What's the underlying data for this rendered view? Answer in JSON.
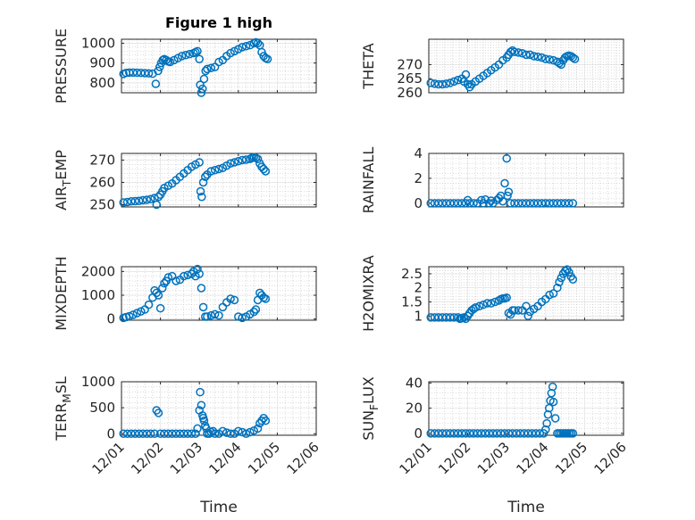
{
  "figure": {
    "title": "Figure 1 high",
    "marker_color": "#0072BD",
    "xlabel": "Time",
    "x_ticks": [
      "12/01",
      "12/02",
      "12/03",
      "12/04",
      "12/05",
      "12/06"
    ]
  },
  "chart_data": [
    {
      "type": "scatter",
      "ylabel": "PRESSURE",
      "title": "Figure 1 high",
      "xlabel": "",
      "xlim": [
        0,
        5
      ],
      "ylim": [
        750,
        1020
      ],
      "yticks": [
        800,
        900,
        1000
      ],
      "ytick_labels": [
        "800",
        "900",
        "1000"
      ],
      "grid": true,
      "series": [
        {
          "x": [
            0.05,
            0.12,
            0.2,
            0.3,
            0.4,
            0.5,
            0.6,
            0.7,
            0.8,
            0.88,
            0.94,
            0.98,
            1.02,
            1.06,
            1.1,
            1.15,
            1.2,
            1.25,
            1.35,
            1.45,
            1.55,
            1.65,
            1.75,
            1.85,
            1.9,
            1.95,
            2.0,
            2.02,
            2.05,
            2.08,
            2.12,
            2.16,
            2.2,
            2.3,
            2.4,
            2.5,
            2.6,
            2.7,
            2.8,
            2.9,
            3.0,
            3.1,
            3.2,
            3.3,
            3.4,
            3.45,
            3.5,
            3.55,
            3.6,
            3.65,
            3.7,
            3.75
          ],
          "y": [
            845,
            850,
            852,
            852,
            851,
            850,
            849,
            848,
            846,
            795,
            860,
            880,
            900,
            915,
            920,
            915,
            908,
            905,
            915,
            925,
            935,
            940,
            945,
            950,
            955,
            960,
            920,
            790,
            750,
            770,
            820,
            860,
            870,
            875,
            880,
            905,
            915,
            935,
            950,
            960,
            970,
            980,
            985,
            990,
            1000,
            1005,
            1000,
            990,
            955,
            935,
            925,
            920
          ]
        }
      ]
    },
    {
      "type": "scatter",
      "ylabel": "THETA",
      "xlabel": "",
      "xlim": [
        0,
        5
      ],
      "ylim": [
        260,
        279
      ],
      "yticks": [
        260,
        265,
        270
      ],
      "ytick_labels": [
        "260",
        "265",
        "270"
      ],
      "grid": true,
      "series": [
        {
          "x": [
            0.05,
            0.15,
            0.25,
            0.35,
            0.45,
            0.55,
            0.65,
            0.75,
            0.85,
            0.9,
            0.95,
            1.0,
            1.05,
            1.1,
            1.2,
            1.3,
            1.4,
            1.5,
            1.6,
            1.7,
            1.8,
            1.9,
            2.0,
            2.05,
            2.1,
            2.15,
            2.2,
            2.3,
            2.4,
            2.5,
            2.6,
            2.7,
            2.8,
            2.9,
            3.0,
            3.1,
            3.2,
            3.3,
            3.35,
            3.4,
            3.45,
            3.5,
            3.55,
            3.6,
            3.65,
            3.7,
            3.75
          ],
          "y": [
            263.5,
            263.2,
            263,
            263,
            263.2,
            263.5,
            264,
            264.5,
            265,
            264,
            266.5,
            263,
            262,
            263,
            264,
            265,
            266,
            267,
            268,
            269,
            270,
            271.5,
            272.5,
            273.5,
            274.5,
            275,
            274.5,
            274.3,
            274,
            273.5,
            273.5,
            273,
            272.8,
            272.5,
            272,
            271.8,
            271.5,
            271,
            270.5,
            270,
            271.5,
            272.5,
            273,
            273.2,
            273,
            272.5,
            272
          ]
        }
      ]
    },
    {
      "type": "scatter",
      "ylabel": "AIR_TEMP",
      "xlabel": "",
      "xlim": [
        0,
        5
      ],
      "ylim": [
        249,
        273
      ],
      "yticks": [
        250,
        260,
        270
      ],
      "ytick_labels": [
        "250",
        "260",
        "270"
      ],
      "grid": true,
      "series": [
        {
          "x": [
            0.05,
            0.15,
            0.25,
            0.35,
            0.45,
            0.55,
            0.65,
            0.75,
            0.85,
            0.9,
            0.95,
            1.0,
            1.05,
            1.1,
            1.2,
            1.3,
            1.4,
            1.5,
            1.6,
            1.7,
            1.8,
            1.9,
            2.0,
            2.03,
            2.06,
            2.1,
            2.15,
            2.2,
            2.3,
            2.4,
            2.5,
            2.6,
            2.7,
            2.8,
            2.9,
            3.0,
            3.1,
            3.2,
            3.3,
            3.35,
            3.4,
            3.45,
            3.5,
            3.55,
            3.6,
            3.65,
            3.7
          ],
          "y": [
            251,
            251.2,
            251.5,
            251.6,
            251.7,
            252,
            252.2,
            252.5,
            253,
            250,
            253.5,
            254.5,
            256,
            257.5,
            258.5,
            259.5,
            261,
            262.5,
            264,
            265.5,
            267,
            268,
            269,
            256,
            253.5,
            260,
            262.5,
            263.5,
            265,
            265.5,
            266,
            266.5,
            267.5,
            268.5,
            269,
            269.5,
            270,
            270.2,
            270.5,
            271,
            271.3,
            271,
            270.5,
            268.5,
            267,
            266,
            265
          ]
        }
      ]
    },
    {
      "type": "scatter",
      "ylabel": "RAINFALL",
      "xlabel": "",
      "xlim": [
        0,
        5
      ],
      "ylim": [
        -0.3,
        4
      ],
      "yticks": [
        0,
        2,
        4
      ],
      "ytick_labels": [
        "0",
        "2",
        "4"
      ],
      "grid": true,
      "series": [
        {
          "x": [
            0.05,
            0.15,
            0.25,
            0.35,
            0.45,
            0.55,
            0.65,
            0.75,
            0.85,
            0.95,
            1.0,
            1.05,
            1.15,
            1.25,
            1.35,
            1.4,
            1.45,
            1.55,
            1.6,
            1.65,
            1.75,
            1.8,
            1.85,
            1.9,
            1.95,
            2.0,
            2.02,
            2.05,
            2.1,
            2.2,
            2.3,
            2.4,
            2.5,
            2.6,
            2.7,
            2.8,
            2.9,
            3.0,
            3.1,
            3.2,
            3.3,
            3.4,
            3.5,
            3.6,
            3.7
          ],
          "y": [
            0,
            0,
            0,
            0,
            0,
            0,
            0,
            0,
            0,
            0,
            0.25,
            0,
            0,
            0,
            0.25,
            0,
            0.3,
            0,
            0.2,
            0,
            0.25,
            0.4,
            0.6,
            0.15,
            1.6,
            3.6,
            0.6,
            0.9,
            0,
            0,
            0,
            0,
            0,
            0,
            0,
            0,
            0,
            0,
            0,
            0,
            0,
            0,
            0,
            0,
            0
          ]
        }
      ]
    },
    {
      "type": "scatter",
      "ylabel": "MIXDEPTH",
      "xlabel": "",
      "xlim": [
        0,
        5
      ],
      "ylim": [
        -50,
        2200
      ],
      "yticks": [
        0,
        1000,
        2000
      ],
      "ytick_labels": [
        "0",
        "1000",
        "2000"
      ],
      "grid": true,
      "series": [
        {
          "x": [
            0.05,
            0.12,
            0.2,
            0.3,
            0.4,
            0.5,
            0.6,
            0.7,
            0.8,
            0.85,
            0.9,
            0.95,
            1.0,
            1.05,
            1.1,
            1.15,
            1.2,
            1.3,
            1.4,
            1.5,
            1.6,
            1.7,
            1.8,
            1.85,
            1.9,
            1.95,
            2.0,
            2.05,
            2.1,
            2.15,
            2.2,
            2.3,
            2.4,
            2.5,
            2.6,
            2.7,
            2.8,
            2.9,
            3.0,
            3.1,
            3.2,
            3.3,
            3.4,
            3.45,
            3.5,
            3.55,
            3.6,
            3.65,
            3.7
          ],
          "y": [
            50,
            80,
            120,
            180,
            250,
            320,
            400,
            600,
            900,
            1200,
            1100,
            1000,
            450,
            1300,
            1500,
            1600,
            1750,
            1800,
            1600,
            1650,
            1800,
            1850,
            1900,
            2000,
            1800,
            2100,
            1900,
            1300,
            500,
            100,
            100,
            150,
            200,
            150,
            500,
            700,
            850,
            800,
            100,
            50,
            100,
            200,
            300,
            400,
            800,
            1100,
            1000,
            900,
            850
          ]
        }
      ]
    },
    {
      "type": "scatter",
      "ylabel": "H2OMIXRA",
      "xlabel": "",
      "xlim": [
        0,
        5
      ],
      "ylim": [
        0.85,
        2.75
      ],
      "yticks": [
        1,
        1.5,
        2,
        2.5
      ],
      "ytick_labels": [
        "1",
        "1.5",
        "2",
        "2.5"
      ],
      "grid": true,
      "series": [
        {
          "x": [
            0.05,
            0.15,
            0.25,
            0.35,
            0.45,
            0.55,
            0.65,
            0.75,
            0.8,
            0.85,
            0.9,
            0.95,
            1.0,
            1.05,
            1.1,
            1.15,
            1.2,
            1.3,
            1.4,
            1.5,
            1.6,
            1.7,
            1.8,
            1.85,
            1.9,
            1.95,
            2.0,
            2.05,
            2.1,
            2.15,
            2.2,
            2.3,
            2.4,
            2.5,
            2.55,
            2.6,
            2.7,
            2.8,
            2.9,
            3.0,
            3.1,
            3.2,
            3.3,
            3.35,
            3.4,
            3.45,
            3.5,
            3.55,
            3.6,
            3.65,
            3.7
          ],
          "y": [
            0.95,
            0.95,
            0.95,
            0.95,
            0.95,
            0.95,
            0.95,
            0.95,
            0.9,
            0.92,
            0.95,
            0.9,
            1.0,
            1.1,
            1.2,
            1.25,
            1.3,
            1.35,
            1.4,
            1.45,
            1.45,
            1.5,
            1.55,
            1.6,
            1.62,
            1.62,
            1.65,
            1.1,
            1.05,
            1.2,
            1.2,
            1.2,
            1.2,
            1.35,
            1.0,
            1.15,
            1.25,
            1.35,
            1.5,
            1.6,
            1.75,
            1.8,
            2.0,
            2.2,
            2.35,
            2.5,
            2.6,
            2.65,
            2.55,
            2.4,
            2.3
          ]
        }
      ]
    },
    {
      "type": "scatter",
      "ylabel": "TERR_MSL",
      "xlabel": "Time",
      "xlim": [
        0,
        5
      ],
      "ylim": [
        -30,
        1000
      ],
      "yticks": [
        0,
        500,
        1000
      ],
      "ytick_labels": [
        "0",
        "500",
        "1000"
      ],
      "grid": true,
      "series": [
        {
          "x": [
            0.05,
            0.15,
            0.25,
            0.35,
            0.45,
            0.55,
            0.65,
            0.75,
            0.85,
            0.9,
            0.95,
            1.0,
            1.1,
            1.2,
            1.3,
            1.4,
            1.5,
            1.6,
            1.7,
            1.8,
            1.9,
            1.95,
            2.0,
            2.02,
            2.05,
            2.08,
            2.1,
            2.12,
            2.15,
            2.18,
            2.2,
            2.25,
            2.3,
            2.35,
            2.4,
            2.5,
            2.6,
            2.7,
            2.8,
            2.9,
            3.0,
            3.1,
            3.2,
            3.3,
            3.4,
            3.5,
            3.55,
            3.6,
            3.65,
            3.7
          ],
          "y": [
            0,
            0,
            0,
            0,
            0,
            0,
            0,
            0,
            0,
            450,
            400,
            0,
            0,
            0,
            0,
            0,
            0,
            0,
            0,
            0,
            0,
            100,
            450,
            800,
            550,
            350,
            300,
            250,
            150,
            100,
            0,
            0,
            30,
            50,
            0,
            0,
            50,
            20,
            0,
            0,
            50,
            30,
            0,
            30,
            60,
            100,
            200,
            250,
            300,
            250
          ]
        }
      ]
    },
    {
      "type": "scatter",
      "ylabel": "SUN_FLUX",
      "xlabel": "Time",
      "xlim": [
        0,
        5
      ],
      "ylim": [
        -1.5,
        41
      ],
      "yticks": [
        0,
        20,
        40
      ],
      "ytick_labels": [
        "0",
        "20",
        "40"
      ],
      "grid": true,
      "series": [
        {
          "x": [
            0.05,
            0.15,
            0.25,
            0.35,
            0.45,
            0.55,
            0.65,
            0.75,
            0.85,
            0.95,
            1.05,
            1.15,
            1.25,
            1.35,
            1.45,
            1.55,
            1.65,
            1.75,
            1.85,
            1.95,
            2.05,
            2.15,
            2.25,
            2.35,
            2.45,
            2.55,
            2.65,
            2.75,
            2.85,
            2.95,
            3.0,
            3.03,
            3.06,
            3.09,
            3.12,
            3.15,
            3.18,
            3.2,
            3.25,
            3.3,
            3.35,
            3.4,
            3.45,
            3.5,
            3.55,
            3.6,
            3.65,
            3.7
          ],
          "y": [
            0,
            0,
            0,
            0,
            0,
            0,
            0,
            0,
            0,
            0,
            0,
            0,
            0,
            0,
            0,
            0,
            0,
            0,
            0,
            0,
            0,
            0,
            0,
            0,
            0,
            0,
            0,
            0,
            0,
            0,
            3,
            8,
            15,
            20,
            26,
            32,
            37,
            25,
            12,
            0,
            0,
            0,
            0,
            0,
            0,
            0,
            0,
            0
          ]
        }
      ]
    }
  ]
}
